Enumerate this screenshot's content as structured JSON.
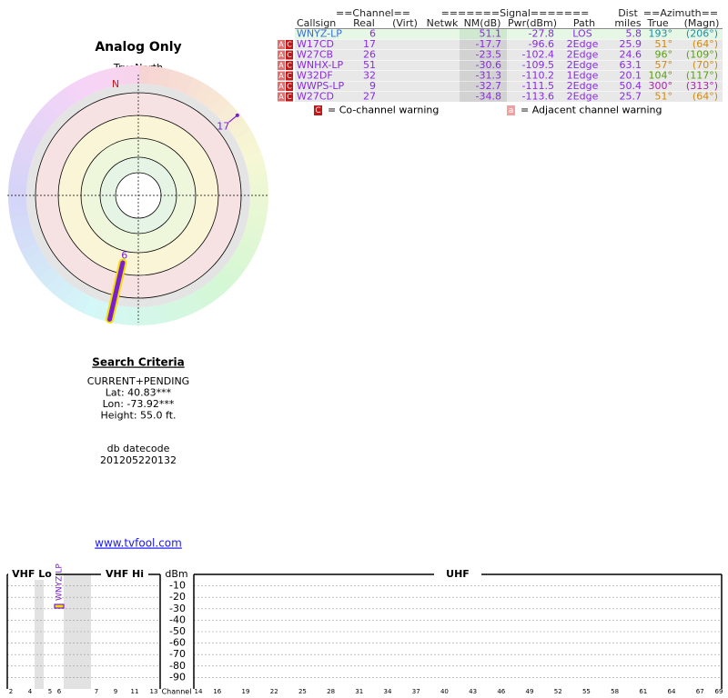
{
  "radar": {
    "title": "Analog Only",
    "north_label": "TrueNorth",
    "n_label": "N",
    "stations": [
      {
        "label": "17",
        "azimuth": 51,
        "nm": -17.7,
        "color": "#7a1fd0"
      },
      {
        "label": "6",
        "azimuth": 193,
        "nm": 51.1,
        "color": "#7a1fd0"
      }
    ]
  },
  "search": {
    "title": "Search Criteria",
    "lines": [
      "CURRENT+PENDING",
      "Lat: 40.83***",
      "Lon: -73.92***",
      "Height: 55.0 ft."
    ],
    "datecode_label": "db datecode",
    "datecode": "201205220132",
    "link": "www.tvfool.com"
  },
  "table": {
    "group_headers": [
      "==Channel==",
      "=======Signal=======",
      "Dist",
      "==Azimuth=="
    ],
    "headers": [
      "Callsign",
      "Real",
      "(Virt)",
      "Netwk",
      "NM(dB)",
      "Pwr(dBm)",
      "Path",
      "miles",
      "True",
      "(Magn)"
    ],
    "rows": [
      {
        "warnings": [],
        "callsign": "WNYZ-LP",
        "real": "6",
        "nm": "51.1",
        "pwr": "-27.8",
        "path": "LOS",
        "dist": "5.8",
        "true": "193°",
        "magn": "(206°)",
        "az_color": "#1a8fa0"
      },
      {
        "warnings": [
          "A",
          "C"
        ],
        "callsign": "W17CD",
        "real": "17",
        "nm": "-17.7",
        "pwr": "-96.6",
        "path": "2Edge",
        "dist": "25.9",
        "true": "51°",
        "magn": "(64°)",
        "az_color": "#d08a10"
      },
      {
        "warnings": [
          "A",
          "C"
        ],
        "callsign": "W27CB",
        "real": "26",
        "nm": "-23.5",
        "pwr": "-102.4",
        "path": "2Edge",
        "dist": "24.6",
        "true": "96°",
        "magn": "(109°)",
        "az_color": "#5aa010"
      },
      {
        "warnings": [
          "A",
          "C"
        ],
        "callsign": "WNHX-LP",
        "real": "51",
        "nm": "-30.6",
        "pwr": "-109.5",
        "path": "2Edge",
        "dist": "63.1",
        "true": "57°",
        "magn": "(70°)",
        "az_color": "#d08a10"
      },
      {
        "warnings": [
          "A",
          "C"
        ],
        "callsign": "W32DF",
        "real": "32",
        "nm": "-31.3",
        "pwr": "-110.2",
        "path": "1Edge",
        "dist": "20.1",
        "true": "104°",
        "magn": "(117°)",
        "az_color": "#5aa010"
      },
      {
        "warnings": [
          "A",
          "C"
        ],
        "callsign": "WWPS-LP",
        "real": "9",
        "nm": "-32.7",
        "pwr": "-111.5",
        "path": "2Edge",
        "dist": "50.4",
        "true": "300°",
        "magn": "(313°)",
        "az_color": "#b020b0"
      },
      {
        "warnings": [
          "A",
          "C"
        ],
        "callsign": "W27CD",
        "real": "27",
        "nm": "-34.8",
        "pwr": "-113.6",
        "path": "2Edge",
        "dist": "25.7",
        "true": "51°",
        "magn": "(64°)",
        "az_color": "#d08a10"
      }
    ]
  },
  "legend": {
    "co_symbol": "C",
    "co_text": "= Co-channel warning",
    "adj_symbol": "a",
    "adj_text": "= Adjacent channel warning"
  },
  "spectrum": {
    "sections": [
      "VHF Lo",
      "VHF Hi",
      "UHF"
    ],
    "y_label": "dBm",
    "x_label": "Channel",
    "ylim": [
      -100,
      0
    ],
    "yticks": [
      -10,
      -20,
      -30,
      -40,
      -50,
      -60,
      -70,
      -80,
      -90
    ],
    "vhf_ticks": [
      2,
      4,
      5,
      6,
      7,
      9,
      11,
      13
    ],
    "uhf_ticks": [
      14,
      16,
      19,
      22,
      25,
      28,
      31,
      34,
      37,
      40,
      43,
      46,
      49,
      52,
      55,
      58,
      61,
      64,
      67,
      69
    ],
    "bars": [
      {
        "label": "WNYZ-LP",
        "channel": 6,
        "value": -27.8
      }
    ]
  }
}
